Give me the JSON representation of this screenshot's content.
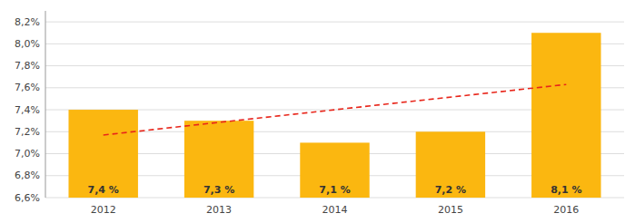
{
  "chart_data": {
    "type": "bar",
    "categories": [
      "2012",
      "2013",
      "2014",
      "2015",
      "2016"
    ],
    "values": [
      7.4,
      7.3,
      7.1,
      7.2,
      8.1
    ],
    "value_labels": [
      "7,4 %",
      "7,3 %",
      "7,1 %",
      "7,2 %",
      "8,1 %"
    ],
    "data_labels": true,
    "color": "#FBB710",
    "trend": {
      "start": 7.17,
      "end": 7.63,
      "color": "#E8251A",
      "line_style": "dashed"
    },
    "ylim": [
      6.6,
      8.3
    ],
    "yticks": [
      {
        "value": 6.6,
        "label": "6,6%"
      },
      {
        "value": 6.8,
        "label": "6,8%"
      },
      {
        "value": 7.0,
        "label": "7,0%"
      },
      {
        "value": 7.2,
        "label": "7,2%"
      },
      {
        "value": 7.4,
        "label": "7,4%"
      },
      {
        "value": 7.6,
        "label": "7,6%"
      },
      {
        "value": 7.8,
        "label": "7,8%"
      },
      {
        "value": 8.0,
        "label": "8,0%"
      },
      {
        "value": 8.2,
        "label": "8,2%"
      }
    ],
    "grid": true
  }
}
